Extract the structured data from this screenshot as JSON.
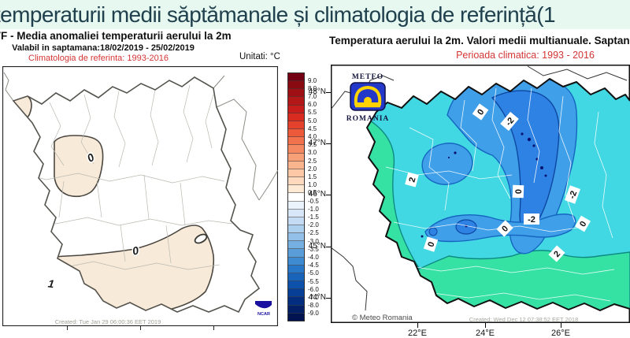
{
  "title": "temperaturii medii săptămanale și climatologia de referință(1",
  "left_map": {
    "heading": "VF - Media anomaliei temperaturii aerului la 2m",
    "valid": "Valabil in saptamana:18/02/2019 - 25/02/2019",
    "climatology": "Climatologia de referinta: 1993-2016",
    "units": "Unitati: °C",
    "created": "Created: Tue Jan 29 06:00:36 EET 2019",
    "ncar": "NCAR",
    "contours": [
      "0",
      "0",
      "1"
    ]
  },
  "colorbar": {
    "ticks": [
      "9.0",
      "8.0",
      "7.0",
      "6.0",
      "5.5",
      "5.0",
      "4.5",
      "4.0",
      "3.5",
      "3.0",
      "2.5",
      "2.0",
      "1.5",
      "1.0",
      "0.5",
      "-0.5",
      "-1.0",
      "-1.5",
      "-2.0",
      "-2.5",
      "-3.0",
      "-3.5",
      "-4.0",
      "-4.5",
      "-5.0",
      "-5.5",
      "-6.0",
      "-7.0",
      "-8.0",
      "-9.0"
    ],
    "colors": [
      "#730012",
      "#8a0a12",
      "#9e1014",
      "#b31717",
      "#c71e1c",
      "#d92b20",
      "#e5422d",
      "#ec5a3b",
      "#f1724d",
      "#f58a62",
      "#f8a077",
      "#fab58e",
      "#fcc8a5",
      "#fdd9bd",
      "#fee9d5",
      "#ffffff",
      "#eaf2fb",
      "#d8e7f7",
      "#c4dbf3",
      "#accfee",
      "#92c0e8",
      "#76afe1",
      "#599dd9",
      "#3f8bd1",
      "#2878c7",
      "#1864bb",
      "#0d51ab",
      "#073f97",
      "#032e80",
      "#021f68",
      "#011450"
    ]
  },
  "right_map": {
    "heading": "Temperatura aerului la 2m. Valori medii multianuale. Saptan",
    "period": "Perioada climatica: 1993 - 2016",
    "logo_top": "METEO",
    "logo_bottom": "ROMANIA",
    "copyright": "© Meteo Romania",
    "created": "Created: Wed Dec 12 07:38:52 EET 2018",
    "lat_ticks": [
      "48°N",
      "47°N",
      "46°N",
      "45°N",
      "44°N"
    ],
    "lon_ticks": [
      "22°E",
      "24°E",
      "26°E"
    ],
    "contours": [
      "0",
      "-2",
      "2",
      "0",
      "-2",
      "-2",
      "0",
      "0",
      "0",
      "2"
    ]
  },
  "colors": {
    "anomaly_light": "#f8ead8",
    "anomaly_dark": "#f2dcc2",
    "green": "#35e2a4",
    "cyan": "#41d8e3",
    "mid_blue": "#3f9fe8",
    "deep_blue": "#2e82e4",
    "navy_dot": "#0a1470",
    "red_text": "#d43535",
    "title_bg": "#e6f8ef",
    "title_fg": "#20404e"
  }
}
